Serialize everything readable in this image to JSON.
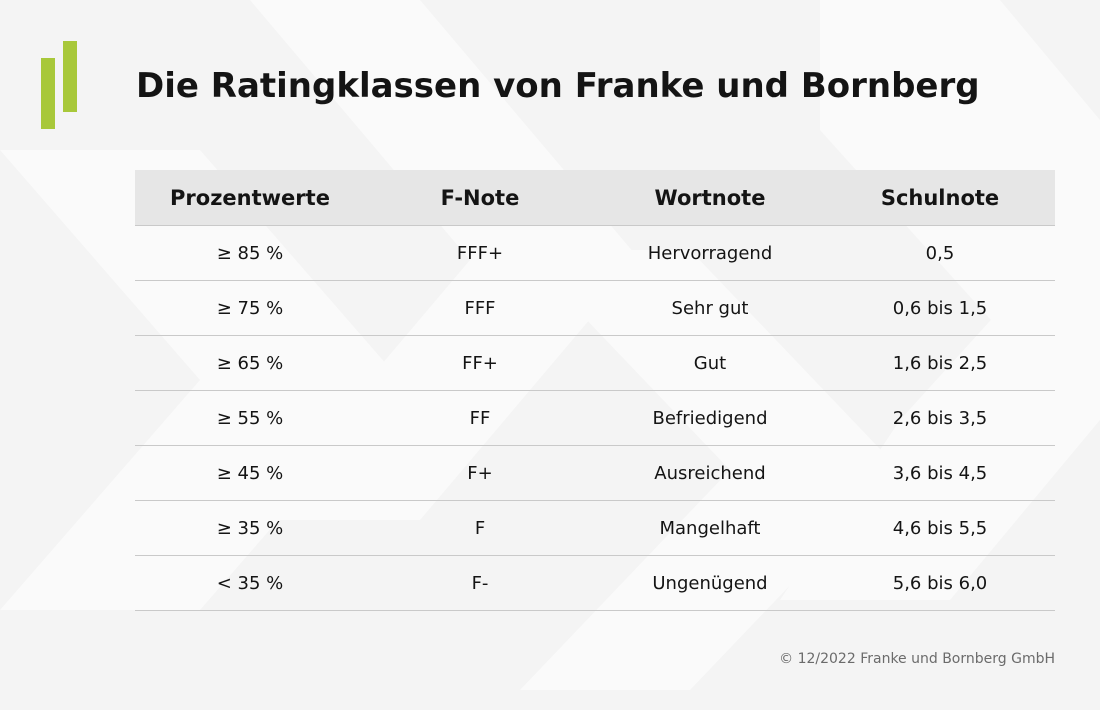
{
  "title": "Die Ratingklassen von Franke und Bornberg",
  "table": {
    "headers": [
      "Prozentwerte",
      "F-Note",
      "Wortnote",
      "Schulnote"
    ],
    "rows": [
      [
        "≥ 85 %",
        "FFF+",
        "Hervorragend",
        "0,5"
      ],
      [
        "≥ 75 %",
        "FFF",
        "Sehr gut",
        "0,6 bis 1,5"
      ],
      [
        "≥ 65 %",
        "FF+",
        "Gut",
        "1,6 bis 2,5"
      ],
      [
        "≥ 55 %",
        "FF",
        "Befriedigend",
        "2,6 bis 3,5"
      ],
      [
        "≥ 45 %",
        "F+",
        "Ausreichend",
        "3,6 bis 4,5"
      ],
      [
        "≥ 35 %",
        "F",
        "Mangelhaft",
        "4,6 bis 5,5"
      ],
      [
        "< 35 %",
        "F-",
        "Ungenügend",
        "5,6 bis 6,0"
      ]
    ]
  },
  "footer": "© 12/2022 Franke und Bornberg GmbH",
  "colors": {
    "background": "#f4f4f4",
    "logo_green": "#a8c83a",
    "header_row": "#e6e6e6",
    "row_divider": "#c9c9c9",
    "footer_text": "#6b6b6b"
  },
  "icons": {
    "logo": "franke-bornberg-logo-bars"
  }
}
